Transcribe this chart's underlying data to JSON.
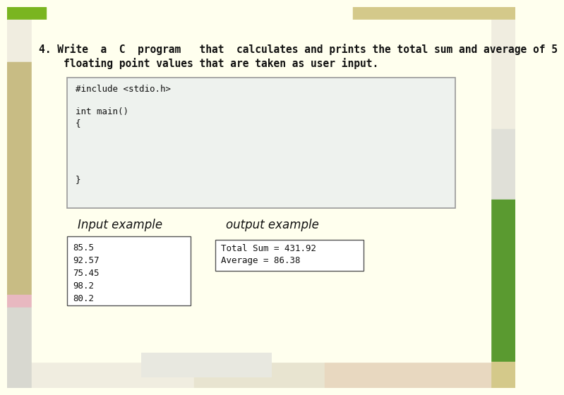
{
  "bg_color": "#ffffee",
  "title_line1": "4. Write  a  C  program   that  calculates and prints the total sum and average of 5",
  "title_line2": "    floating point values that are taken as user input.",
  "code_box_text": "#include <stdio.h>\n\nint main()\n{\n\n\n\n\n}",
  "code_box_bg": "#eef2ee",
  "code_box_border": "#999999",
  "input_label": "Input example",
  "output_label": "output example",
  "input_lines": [
    "85.5",
    "92.57",
    "75.45",
    "98.2",
    "80.2"
  ],
  "output_lines": [
    "Total Sum = 431.92",
    "Average = 86.38"
  ],
  "input_box_bg": "#ffffff",
  "output_box_bg": "#ffffff",
  "border_color": "#555555",
  "title_fontsize": 10.5,
  "label_fontsize": 12,
  "code_fontsize": 9,
  "mono_fontsize": 9
}
